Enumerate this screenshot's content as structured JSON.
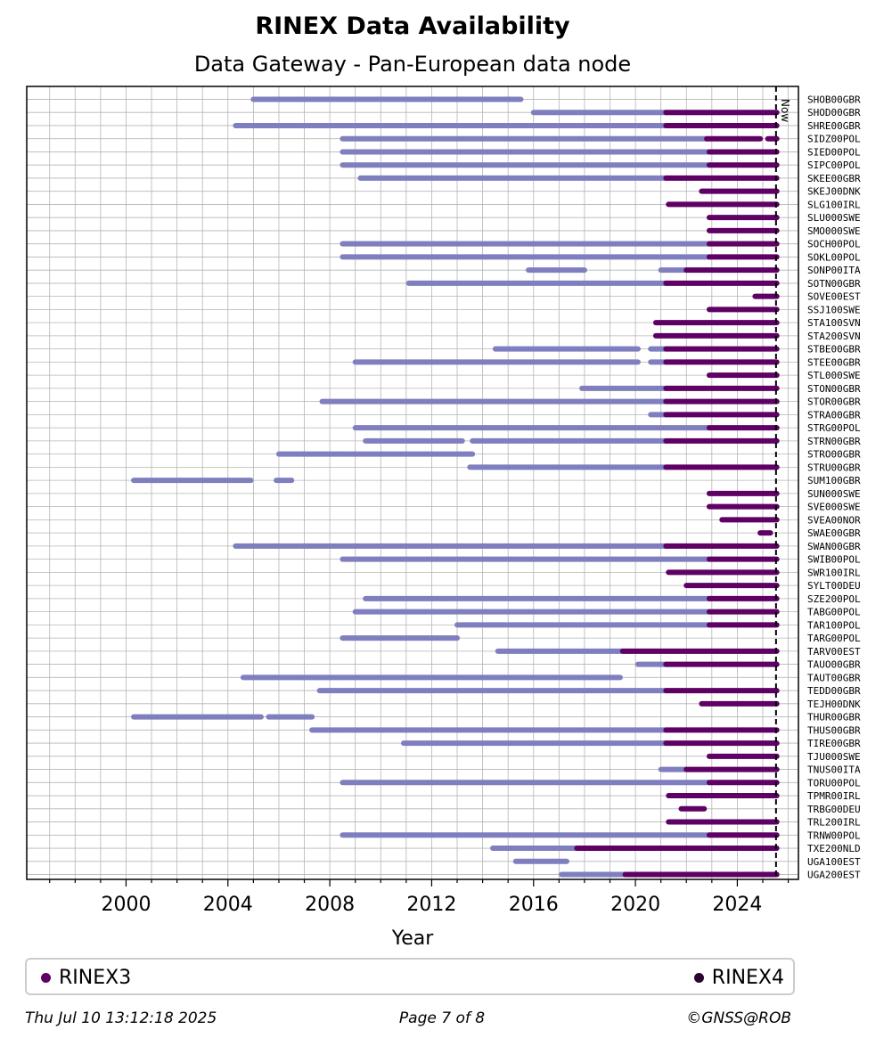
{
  "title": "RINEX Data Availability",
  "subtitle": "Data Gateway - Pan-European data node",
  "footer": {
    "date": "Thu Jul 10 13:12:18 2025",
    "page": "Page 7 of 8",
    "copyright": "©GNSS@ROB"
  },
  "legend": [
    {
      "label": "RINEX3",
      "color": "#5e0064"
    },
    {
      "label": "RINEX4",
      "color": "#2a0530"
    }
  ],
  "colors": {
    "rinex2": "#7f7fbf",
    "rinex3": "#5e0064",
    "rinex4": "#2a0530"
  },
  "chart_data": {
    "type": "timeline",
    "xlabel": "Year",
    "xlim": [
      1996.1,
      2026.4
    ],
    "xticks": [
      2000,
      2004,
      2008,
      2012,
      2016,
      2020,
      2024
    ],
    "now": 2025.52,
    "now_label": "Now",
    "stations": [
      {
        "name": "SHOB00GBR",
        "segments": [
          {
            "start": 2005.0,
            "end": 2015.5,
            "format": "rinex2"
          }
        ]
      },
      {
        "name": "SHOD00GBR",
        "segments": [
          {
            "start": 2016.0,
            "end": 2021.2,
            "format": "rinex2"
          },
          {
            "start": 2021.2,
            "end": 2025.55,
            "format": "rinex3"
          }
        ]
      },
      {
        "name": "SHRE00GBR",
        "segments": [
          {
            "start": 2004.3,
            "end": 2021.2,
            "format": "rinex2"
          },
          {
            "start": 2021.2,
            "end": 2025.55,
            "format": "rinex3"
          }
        ]
      },
      {
        "name": "SIDZ00POL",
        "segments": [
          {
            "start": 2008.5,
            "end": 2022.8,
            "format": "rinex2"
          },
          {
            "start": 2022.8,
            "end": 2024.9,
            "format": "rinex3"
          },
          {
            "start": 2025.2,
            "end": 2025.55,
            "format": "rinex3"
          }
        ]
      },
      {
        "name": "SIED00POL",
        "segments": [
          {
            "start": 2008.5,
            "end": 2022.9,
            "format": "rinex2"
          },
          {
            "start": 2022.9,
            "end": 2025.55,
            "format": "rinex3"
          }
        ]
      },
      {
        "name": "SIPC00POL",
        "segments": [
          {
            "start": 2008.5,
            "end": 2022.9,
            "format": "rinex2"
          },
          {
            "start": 2022.9,
            "end": 2025.55,
            "format": "rinex3"
          }
        ]
      },
      {
        "name": "SKEE00GBR",
        "segments": [
          {
            "start": 2009.2,
            "end": 2021.2,
            "format": "rinex2"
          },
          {
            "start": 2021.2,
            "end": 2025.55,
            "format": "rinex3"
          }
        ]
      },
      {
        "name": "SKEJ00DNK",
        "segments": [
          {
            "start": 2022.6,
            "end": 2025.55,
            "format": "rinex3"
          }
        ]
      },
      {
        "name": "SLG100IRL",
        "segments": [
          {
            "start": 2021.3,
            "end": 2025.55,
            "format": "rinex3"
          }
        ]
      },
      {
        "name": "SLU000SWE",
        "segments": [
          {
            "start": 2022.9,
            "end": 2025.55,
            "format": "rinex3"
          }
        ]
      },
      {
        "name": "SMO000SWE",
        "segments": [
          {
            "start": 2022.9,
            "end": 2025.55,
            "format": "rinex3"
          }
        ]
      },
      {
        "name": "SOCH00POL",
        "segments": [
          {
            "start": 2008.5,
            "end": 2022.9,
            "format": "rinex2"
          },
          {
            "start": 2022.9,
            "end": 2025.55,
            "format": "rinex3"
          }
        ]
      },
      {
        "name": "SOKL00POL",
        "segments": [
          {
            "start": 2008.5,
            "end": 2022.9,
            "format": "rinex2"
          },
          {
            "start": 2022.9,
            "end": 2025.55,
            "format": "rinex3"
          }
        ]
      },
      {
        "name": "SONP00ITA",
        "segments": [
          {
            "start": 2015.8,
            "end": 2018.0,
            "format": "rinex2"
          },
          {
            "start": 2021.0,
            "end": 2022.0,
            "format": "rinex2"
          },
          {
            "start": 2022.0,
            "end": 2025.55,
            "format": "rinex3"
          }
        ]
      },
      {
        "name": "SOTN00GBR",
        "segments": [
          {
            "start": 2011.1,
            "end": 2021.2,
            "format": "rinex2"
          },
          {
            "start": 2021.2,
            "end": 2025.55,
            "format": "rinex3"
          }
        ]
      },
      {
        "name": "SOVE00EST",
        "segments": [
          {
            "start": 2024.7,
            "end": 2025.55,
            "format": "rinex3"
          }
        ]
      },
      {
        "name": "SSJ100SWE",
        "segments": [
          {
            "start": 2022.9,
            "end": 2025.55,
            "format": "rinex3"
          }
        ]
      },
      {
        "name": "STA100SVN",
        "segments": [
          {
            "start": 2020.8,
            "end": 2025.55,
            "format": "rinex3"
          }
        ]
      },
      {
        "name": "STA200SVN",
        "segments": [
          {
            "start": 2020.8,
            "end": 2025.55,
            "format": "rinex3"
          }
        ]
      },
      {
        "name": "STBE00GBR",
        "segments": [
          {
            "start": 2014.5,
            "end": 2020.1,
            "format": "rinex2"
          },
          {
            "start": 2020.6,
            "end": 2021.2,
            "format": "rinex2"
          },
          {
            "start": 2021.2,
            "end": 2025.55,
            "format": "rinex3"
          }
        ]
      },
      {
        "name": "STEE00GBR",
        "segments": [
          {
            "start": 2009.0,
            "end": 2020.1,
            "format": "rinex2"
          },
          {
            "start": 2020.6,
            "end": 2021.2,
            "format": "rinex2"
          },
          {
            "start": 2021.2,
            "end": 2025.55,
            "format": "rinex3"
          }
        ]
      },
      {
        "name": "STL000SWE",
        "segments": [
          {
            "start": 2022.9,
            "end": 2025.55,
            "format": "rinex3"
          }
        ]
      },
      {
        "name": "STON00GBR",
        "segments": [
          {
            "start": 2017.9,
            "end": 2021.2,
            "format": "rinex2"
          },
          {
            "start": 2021.2,
            "end": 2025.55,
            "format": "rinex3"
          }
        ]
      },
      {
        "name": "STOR00GBR",
        "segments": [
          {
            "start": 2007.7,
            "end": 2021.2,
            "format": "rinex2"
          },
          {
            "start": 2021.2,
            "end": 2025.55,
            "format": "rinex3"
          }
        ]
      },
      {
        "name": "STRA00GBR",
        "segments": [
          {
            "start": 2020.6,
            "end": 2021.2,
            "format": "rinex2"
          },
          {
            "start": 2021.2,
            "end": 2025.55,
            "format": "rinex3"
          }
        ]
      },
      {
        "name": "STRG00POL",
        "segments": [
          {
            "start": 2009.0,
            "end": 2022.9,
            "format": "rinex2"
          },
          {
            "start": 2022.9,
            "end": 2025.55,
            "format": "rinex3"
          }
        ]
      },
      {
        "name": "STRN00GBR",
        "segments": [
          {
            "start": 2009.4,
            "end": 2013.2,
            "format": "rinex2"
          },
          {
            "start": 2013.6,
            "end": 2021.2,
            "format": "rinex2"
          },
          {
            "start": 2021.2,
            "end": 2025.55,
            "format": "rinex3"
          }
        ]
      },
      {
        "name": "STRO00GBR",
        "segments": [
          {
            "start": 2006.0,
            "end": 2013.6,
            "format": "rinex2"
          }
        ]
      },
      {
        "name": "STRU00GBR",
        "segments": [
          {
            "start": 2013.5,
            "end": 2021.2,
            "format": "rinex2"
          },
          {
            "start": 2021.2,
            "end": 2025.55,
            "format": "rinex3"
          }
        ]
      },
      {
        "name": "SUM100GBR",
        "segments": [
          {
            "start": 2000.3,
            "end": 2004.9,
            "format": "rinex2"
          },
          {
            "start": 2005.9,
            "end": 2006.5,
            "format": "rinex2"
          }
        ]
      },
      {
        "name": "SUN000SWE",
        "segments": [
          {
            "start": 2022.9,
            "end": 2025.55,
            "format": "rinex3"
          }
        ]
      },
      {
        "name": "SVE000SWE",
        "segments": [
          {
            "start": 2022.9,
            "end": 2025.55,
            "format": "rinex3"
          }
        ]
      },
      {
        "name": "SVEA00NOR",
        "segments": [
          {
            "start": 2023.4,
            "end": 2025.55,
            "format": "rinex3"
          }
        ]
      },
      {
        "name": "SWAE00GBR",
        "segments": [
          {
            "start": 2024.9,
            "end": 2025.3,
            "format": "rinex3"
          }
        ]
      },
      {
        "name": "SWAN00GBR",
        "segments": [
          {
            "start": 2004.3,
            "end": 2021.2,
            "format": "rinex2"
          },
          {
            "start": 2021.2,
            "end": 2025.55,
            "format": "rinex3"
          }
        ]
      },
      {
        "name": "SWIB00POL",
        "segments": [
          {
            "start": 2008.5,
            "end": 2022.9,
            "format": "rinex2"
          },
          {
            "start": 2022.9,
            "end": 2025.55,
            "format": "rinex3"
          }
        ]
      },
      {
        "name": "SWR100IRL",
        "segments": [
          {
            "start": 2021.3,
            "end": 2025.55,
            "format": "rinex3"
          }
        ]
      },
      {
        "name": "SYLT00DEU",
        "segments": [
          {
            "start": 2022.0,
            "end": 2025.55,
            "format": "rinex3"
          }
        ]
      },
      {
        "name": "SZE200POL",
        "segments": [
          {
            "start": 2009.4,
            "end": 2022.9,
            "format": "rinex2"
          },
          {
            "start": 2022.9,
            "end": 2025.55,
            "format": "rinex3"
          }
        ]
      },
      {
        "name": "TABG00POL",
        "segments": [
          {
            "start": 2009.0,
            "end": 2022.9,
            "format": "rinex2"
          },
          {
            "start": 2022.9,
            "end": 2025.55,
            "format": "rinex3"
          }
        ]
      },
      {
        "name": "TAR100POL",
        "segments": [
          {
            "start": 2013.0,
            "end": 2022.9,
            "format": "rinex2"
          },
          {
            "start": 2022.9,
            "end": 2025.55,
            "format": "rinex3"
          }
        ]
      },
      {
        "name": "TARG00POL",
        "segments": [
          {
            "start": 2008.5,
            "end": 2013.0,
            "format": "rinex2"
          }
        ]
      },
      {
        "name": "TARV00EST",
        "segments": [
          {
            "start": 2014.6,
            "end": 2019.5,
            "format": "rinex2"
          },
          {
            "start": 2019.5,
            "end": 2025.55,
            "format": "rinex3"
          }
        ]
      },
      {
        "name": "TAUO00GBR",
        "segments": [
          {
            "start": 2020.1,
            "end": 2021.2,
            "format": "rinex2"
          },
          {
            "start": 2021.2,
            "end": 2025.55,
            "format": "rinex3"
          }
        ]
      },
      {
        "name": "TAUT00GBR",
        "segments": [
          {
            "start": 2004.6,
            "end": 2019.4,
            "format": "rinex2"
          }
        ]
      },
      {
        "name": "TEDD00GBR",
        "segments": [
          {
            "start": 2007.6,
            "end": 2021.2,
            "format": "rinex2"
          },
          {
            "start": 2021.2,
            "end": 2025.55,
            "format": "rinex3"
          }
        ]
      },
      {
        "name": "TEJH00DNK",
        "segments": [
          {
            "start": 2022.6,
            "end": 2025.55,
            "format": "rinex3"
          }
        ]
      },
      {
        "name": "THUR00GBR",
        "segments": [
          {
            "start": 2000.3,
            "end": 2005.3,
            "format": "rinex2"
          },
          {
            "start": 2005.6,
            "end": 2007.3,
            "format": "rinex2"
          }
        ]
      },
      {
        "name": "THUS00GBR",
        "segments": [
          {
            "start": 2007.3,
            "end": 2021.2,
            "format": "rinex2"
          },
          {
            "start": 2021.2,
            "end": 2025.55,
            "format": "rinex3"
          }
        ]
      },
      {
        "name": "TIRE00GBR",
        "segments": [
          {
            "start": 2010.9,
            "end": 2021.2,
            "format": "rinex2"
          },
          {
            "start": 2021.2,
            "end": 2025.55,
            "format": "rinex3"
          }
        ]
      },
      {
        "name": "TJU000SWE",
        "segments": [
          {
            "start": 2022.9,
            "end": 2025.55,
            "format": "rinex3"
          }
        ]
      },
      {
        "name": "TNUS00ITA",
        "segments": [
          {
            "start": 2021.0,
            "end": 2022.0,
            "format": "rinex2"
          },
          {
            "start": 2022.0,
            "end": 2025.55,
            "format": "rinex3"
          }
        ]
      },
      {
        "name": "TORU00POL",
        "segments": [
          {
            "start": 2008.5,
            "end": 2022.9,
            "format": "rinex2"
          },
          {
            "start": 2022.9,
            "end": 2025.55,
            "format": "rinex3"
          }
        ]
      },
      {
        "name": "TPMR00IRL",
        "segments": [
          {
            "start": 2021.3,
            "end": 2025.55,
            "format": "rinex3"
          }
        ]
      },
      {
        "name": "TRBG00DEU",
        "segments": [
          {
            "start": 2021.8,
            "end": 2022.7,
            "format": "rinex3"
          }
        ]
      },
      {
        "name": "TRL200IRL",
        "segments": [
          {
            "start": 2021.3,
            "end": 2025.55,
            "format": "rinex3"
          }
        ]
      },
      {
        "name": "TRNW00POL",
        "segments": [
          {
            "start": 2008.5,
            "end": 2022.9,
            "format": "rinex2"
          },
          {
            "start": 2022.9,
            "end": 2025.55,
            "format": "rinex3"
          }
        ]
      },
      {
        "name": "TXE200NLD",
        "segments": [
          {
            "start": 2014.4,
            "end": 2017.7,
            "format": "rinex2"
          },
          {
            "start": 2017.7,
            "end": 2025.55,
            "format": "rinex3"
          }
        ]
      },
      {
        "name": "UGA100EST",
        "segments": [
          {
            "start": 2015.3,
            "end": 2017.3,
            "format": "rinex2"
          }
        ]
      },
      {
        "name": "UGA200EST",
        "segments": [
          {
            "start": 2017.1,
            "end": 2019.6,
            "format": "rinex2"
          },
          {
            "start": 2019.6,
            "end": 2025.55,
            "format": "rinex3"
          }
        ]
      }
    ]
  }
}
